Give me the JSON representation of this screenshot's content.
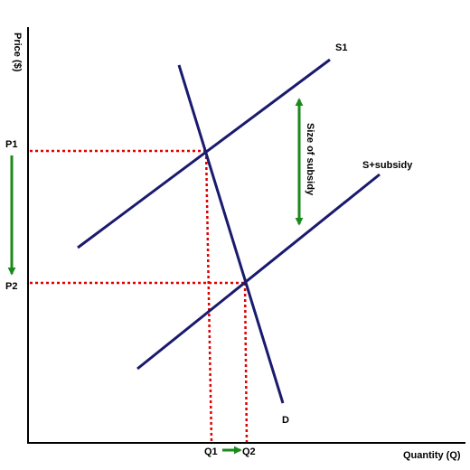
{
  "diagram": {
    "axis_y_label": "Price ($)",
    "axis_x_label": "Quantity (Q)",
    "curves": {
      "s1": {
        "label": "S1"
      },
      "s2": {
        "label": "S+subsidy"
      },
      "demand": {
        "label": "D"
      }
    },
    "prices": {
      "p1": "P1",
      "p2": "P2"
    },
    "quantities": {
      "q1": "Q1",
      "q2": "Q2"
    },
    "subsidy_label": "Size of subsidy",
    "colors": {
      "curve": "#1a1a6e",
      "guide": "#e00000",
      "arrow": "#1a8a1a",
      "axis": "#000000"
    }
  }
}
